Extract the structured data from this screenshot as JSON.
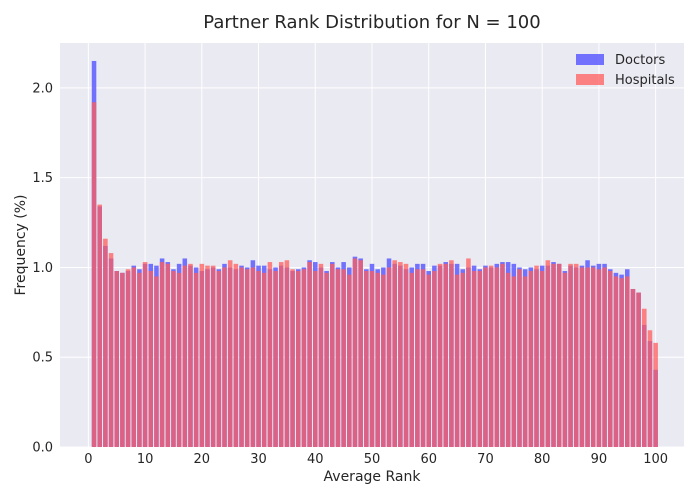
{
  "chart_data": {
    "type": "bar",
    "title": "Partner Rank Distribution for N = 100",
    "xlabel": "Average Rank",
    "ylabel": "Frequency (%)",
    "xlim": [
      -5,
      105
    ],
    "ylim": [
      0,
      2.25
    ],
    "xticks": [
      0,
      10,
      20,
      30,
      40,
      50,
      60,
      70,
      80,
      90,
      100
    ],
    "yticks": [
      0.0,
      0.5,
      1.0,
      1.5,
      2.0
    ],
    "xtick_labels": [
      "0",
      "10",
      "20",
      "30",
      "40",
      "50",
      "60",
      "70",
      "80",
      "90",
      "100"
    ],
    "ytick_labels": [
      "0.0",
      "0.5",
      "1.0",
      "1.5",
      "2.0"
    ],
    "grid": true,
    "legend_position": "top-right",
    "x": [
      1,
      2,
      3,
      4,
      5,
      6,
      7,
      8,
      9,
      10,
      11,
      12,
      13,
      14,
      15,
      16,
      17,
      18,
      19,
      20,
      21,
      22,
      23,
      24,
      25,
      26,
      27,
      28,
      29,
      30,
      31,
      32,
      33,
      34,
      35,
      36,
      37,
      38,
      39,
      40,
      41,
      42,
      43,
      44,
      45,
      46,
      47,
      48,
      49,
      50,
      51,
      52,
      53,
      54,
      55,
      56,
      57,
      58,
      59,
      60,
      61,
      62,
      63,
      64,
      65,
      66,
      67,
      68,
      69,
      70,
      71,
      72,
      73,
      74,
      75,
      76,
      77,
      78,
      79,
      80,
      81,
      82,
      83,
      84,
      85,
      86,
      87,
      88,
      89,
      90,
      91,
      92,
      93,
      94,
      95,
      96,
      97,
      98,
      99,
      100
    ],
    "series": [
      {
        "name": "Doctors",
        "color": "#5c5cff",
        "values": [
          2.15,
          1.34,
          1.12,
          1.05,
          0.98,
          0.97,
          0.98,
          1.01,
          0.99,
          1.02,
          1.02,
          1.01,
          1.05,
          1.03,
          0.99,
          1.02,
          1.05,
          1.01,
          1.0,
          0.98,
          0.99,
          1.0,
          0.99,
          1.02,
          1.0,
          0.99,
          1.01,
          1.0,
          1.04,
          1.01,
          1.01,
          0.99,
          1.0,
          1.01,
          1.0,
          0.98,
          0.99,
          1.0,
          1.04,
          1.03,
          1.0,
          0.98,
          1.03,
          1.0,
          1.03,
          1.0,
          1.06,
          1.05,
          0.99,
          1.02,
          0.99,
          1.0,
          1.05,
          1.02,
          1.01,
          0.99,
          1.0,
          1.02,
          1.02,
          0.98,
          1.01,
          1.01,
          1.03,
          1.02,
          1.02,
          0.99,
          1.0,
          1.01,
          0.99,
          1.01,
          1.0,
          1.02,
          1.03,
          1.03,
          1.02,
          1.0,
          0.99,
          1.0,
          0.99,
          1.01,
          1.01,
          1.03,
          1.02,
          0.98,
          1.01,
          1.0,
          1.01,
          1.04,
          1.01,
          1.02,
          1.02,
          0.99,
          0.97,
          0.96,
          0.99,
          0.88,
          0.86,
          0.68,
          0.59,
          0.43
        ]
      },
      {
        "name": "Hospitals",
        "color": "#ff5c5c",
        "values": [
          1.92,
          1.35,
          1.16,
          1.08,
          0.98,
          0.97,
          0.99,
          1.0,
          0.97,
          1.03,
          0.98,
          0.95,
          1.03,
          1.02,
          0.98,
          0.97,
          1.01,
          1.02,
          0.97,
          1.02,
          1.01,
          1.01,
          0.98,
          1.0,
          1.04,
          1.02,
          1.0,
          0.99,
          1.0,
          0.98,
          0.97,
          1.03,
          0.98,
          1.03,
          1.04,
          0.99,
          0.98,
          0.99,
          1.03,
          0.98,
          1.02,
          0.97,
          1.02,
          0.99,
          0.99,
          0.96,
          1.05,
          1.04,
          0.98,
          0.98,
          0.97,
          0.96,
          1.0,
          1.04,
          1.03,
          1.02,
          0.97,
          0.99,
          0.99,
          0.96,
          0.98,
          1.02,
          1.02,
          1.04,
          0.96,
          0.97,
          1.05,
          0.98,
          0.98,
          1.0,
          1.01,
          1.0,
          1.02,
          0.97,
          0.95,
          0.99,
          0.95,
          0.98,
          1.01,
          0.98,
          1.04,
          1.02,
          1.02,
          0.97,
          1.02,
          1.02,
          1.0,
          1.0,
          1.0,
          0.99,
          1.0,
          0.98,
          0.95,
          0.94,
          0.95,
          0.88,
          0.86,
          0.77,
          0.65,
          0.58
        ]
      }
    ]
  }
}
